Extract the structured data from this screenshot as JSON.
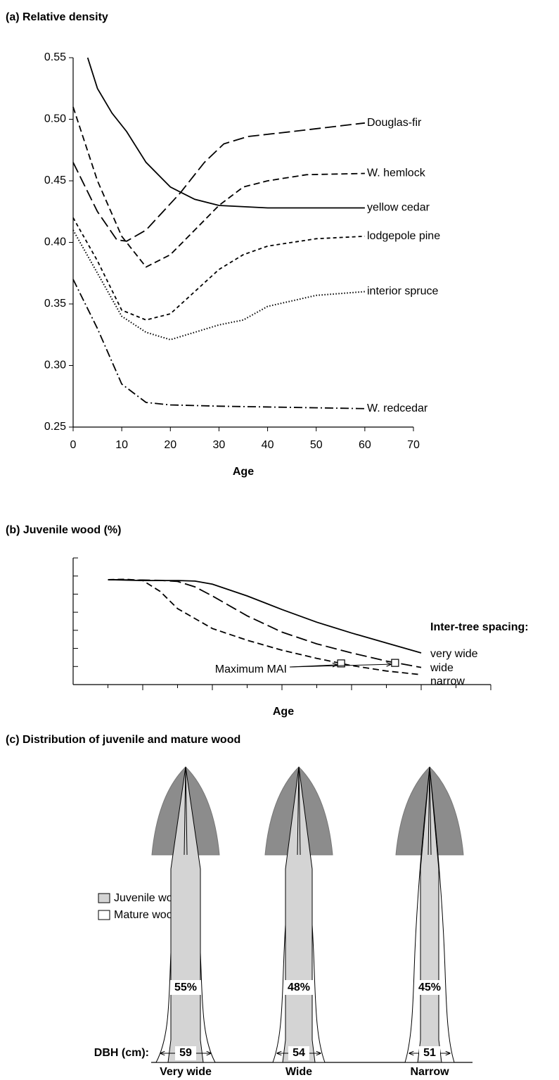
{
  "chart_data": [
    {
      "type": "line",
      "title": "(a) Relative density",
      "x_label": "Age",
      "xlim": [
        0,
        70
      ],
      "xticks": [
        0,
        10,
        20,
        30,
        40,
        50,
        60,
        70
      ],
      "ylim": [
        0.25,
        0.55
      ],
      "yticks": [
        0.25,
        {
          "value": 0.3,
          "label": "0.30"
        },
        0.35,
        {
          "value": 0.4,
          "label": "0.40"
        },
        0.45,
        {
          "value": 0.5,
          "label": "0.50"
        },
        0.55
      ],
      "series": [
        {
          "name": "Douglas-fir",
          "color": "#000000",
          "style": "long-dash",
          "x": [
            0,
            5,
            9,
            11,
            15,
            22,
            27,
            31,
            36,
            45,
            60
          ],
          "values": [
            0.465,
            0.425,
            0.402,
            0.401,
            0.41,
            0.44,
            0.465,
            0.48,
            0.486,
            0.49,
            0.497
          ]
        },
        {
          "name": "W. hemlock",
          "color": "#000000",
          "style": "dash",
          "x": [
            0,
            5,
            10,
            15,
            20,
            25,
            30,
            35,
            40,
            48,
            60
          ],
          "values": [
            0.51,
            0.45,
            0.405,
            0.38,
            0.39,
            0.41,
            0.43,
            0.445,
            0.45,
            0.455,
            0.456
          ]
        },
        {
          "name": "yellow cedar",
          "color": "#000000",
          "style": "solid",
          "x": [
            3,
            5,
            8,
            11,
            15,
            20,
            25,
            30,
            40,
            60
          ],
          "values": [
            0.55,
            0.525,
            0.505,
            0.49,
            0.465,
            0.445,
            0.435,
            0.43,
            0.428,
            0.428
          ]
        },
        {
          "name": "lodgepole pine",
          "color": "#000000",
          "style": "short-dash",
          "x": [
            0,
            5,
            10,
            15,
            20,
            25,
            30,
            35,
            40,
            50,
            60
          ],
          "values": [
            0.42,
            0.385,
            0.345,
            0.337,
            0.342,
            0.36,
            0.378,
            0.39,
            0.397,
            0.403,
            0.405
          ]
        },
        {
          "name": "interior spruce",
          "color": "#000000",
          "style": "dot",
          "x": [
            0,
            5,
            10,
            15,
            20,
            25,
            30,
            35,
            40,
            50,
            60
          ],
          "values": [
            0.41,
            0.375,
            0.34,
            0.327,
            0.321,
            0.327,
            0.333,
            0.337,
            0.348,
            0.357,
            0.36
          ]
        },
        {
          "name": "W. redcedar",
          "color": "#000000",
          "style": "dash-dot",
          "x": [
            0,
            5,
            10,
            15,
            20,
            30,
            45,
            60
          ],
          "values": [
            0.37,
            0.33,
            0.285,
            0.27,
            0.268,
            0.267,
            0.266,
            0.265
          ]
        }
      ]
    },
    {
      "type": "line",
      "title": "(b) Juvenile wood (%)",
      "x_label": "Age",
      "tick_labels": false,
      "xlim": [
        0,
        12
      ],
      "xticks": [
        1,
        2,
        3,
        4,
        5,
        6,
        7,
        8,
        9,
        10,
        11,
        12
      ],
      "ylim": [
        0,
        7
      ],
      "yticks": [
        1,
        2,
        3,
        4,
        5,
        6,
        7
      ],
      "legend_title": "Inter-tree spacing:",
      "series": [
        {
          "name": "very wide",
          "color": "#000000",
          "style": "solid",
          "x": [
            1,
            2,
            3,
            3.5,
            4,
            5,
            6,
            7,
            8,
            9,
            10
          ],
          "values": [
            5.8,
            5.75,
            5.75,
            5.72,
            5.55,
            4.9,
            4.15,
            3.45,
            2.85,
            2.3,
            1.75
          ]
        },
        {
          "name": "wide",
          "color": "#000000",
          "style": "long-dash",
          "x": [
            1,
            2,
            2.5,
            3,
            3.5,
            4,
            5,
            6,
            7,
            8,
            9,
            10
          ],
          "values": [
            5.8,
            5.78,
            5.76,
            5.7,
            5.4,
            4.9,
            3.8,
            2.9,
            2.25,
            1.75,
            1.3,
            0.95
          ]
        },
        {
          "name": "narrow",
          "color": "#000000",
          "style": "dash",
          "x": [
            1,
            1.5,
            2,
            2.5,
            3,
            4,
            5,
            6,
            7,
            8,
            9,
            10
          ],
          "values": [
            5.8,
            5.82,
            5.75,
            5.15,
            4.2,
            3.1,
            2.45,
            1.9,
            1.45,
            1.05,
            0.75,
            0.55
          ]
        }
      ],
      "annotation": {
        "text": "Maximum MAI",
        "points": [
          {
            "x": 7.7,
            "y": 1.17
          },
          {
            "x": 9.25,
            "y": 1.2
          }
        ]
      }
    }
  ],
  "diagram": {
    "title": "(c) Distribution of juvenile and mature wood",
    "legend": [
      "Juvenile wood",
      "Mature wood"
    ],
    "dbh_label": "DBH (cm):",
    "trees": [
      {
        "label": "Very wide",
        "juvenile": "55%",
        "dbh": "59"
      },
      {
        "label": "Wide",
        "juvenile": "48%",
        "dbh": "54"
      },
      {
        "label": "Narrow",
        "juvenile": "45%",
        "dbh": "51"
      }
    ]
  }
}
